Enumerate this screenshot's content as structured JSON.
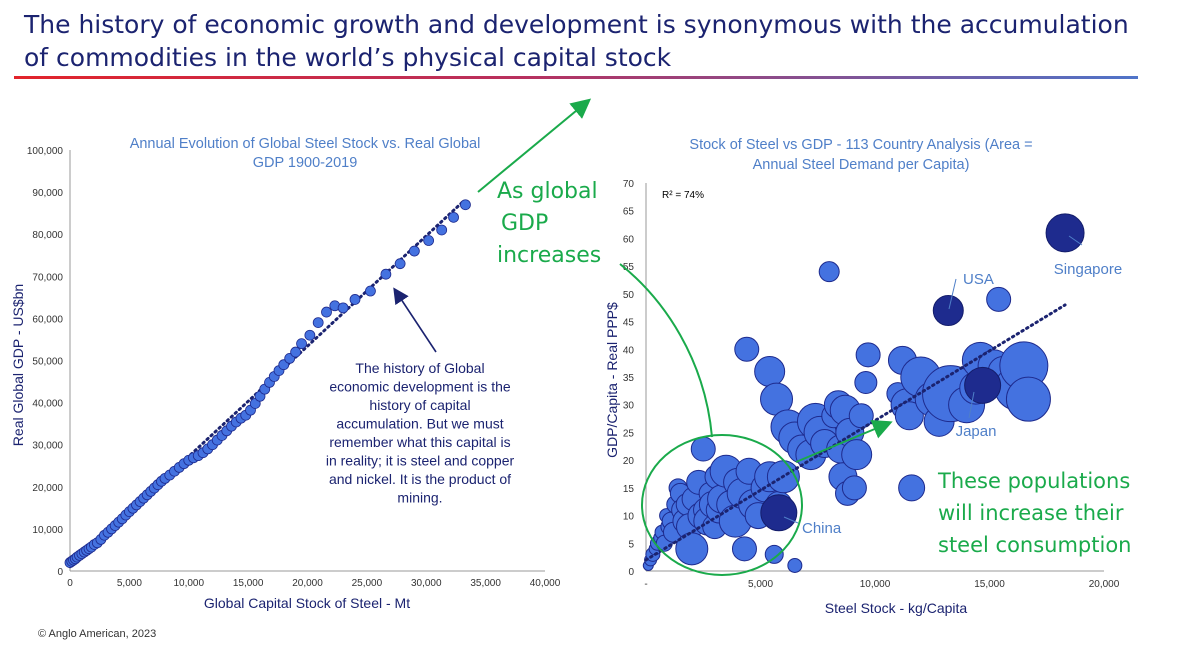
{
  "headline": {
    "line1": "The history of economic growth and development is synonymous with the accumulation",
    "line2": "of commodities in the world’s physical capital stock"
  },
  "footer": "© Anglo American, 2023",
  "colors": {
    "navy": "#1b2370",
    "bubble": "#4472e0",
    "bubble_dark": "#1e2b8e",
    "title_blue": "#4f7fc8",
    "green": "#1aaa4b"
  },
  "chart_data": [
    {
      "type": "scatter",
      "title_lines": [
        "Annual Evolution of Global Steel Stock vs. Real Global",
        "GDP 1900-2019"
      ],
      "xlabel": "Global Capital Stock of Steel - Mt",
      "ylabel": "Real Global GDP - US$bn",
      "xlim": [
        0,
        40000
      ],
      "ylim": [
        0,
        100000
      ],
      "xticks": [
        0,
        5000,
        10000,
        15000,
        20000,
        25000,
        30000,
        35000,
        40000
      ],
      "xtick_labels": [
        "0",
        "5,000",
        "10,000",
        "15,000",
        "20,000",
        "25,000",
        "30,000",
        "35,000",
        "40,000"
      ],
      "yticks": [
        0,
        10000,
        20000,
        30000,
        40000,
        50000,
        60000,
        70000,
        80000,
        90000,
        100000
      ],
      "ytick_labels": [
        "0",
        "10,000",
        "20,000",
        "30,000",
        "40,000",
        "50,000",
        "60,000",
        "70,000",
        "80,000",
        "90,000",
        "100,000"
      ],
      "trendline": {
        "style": "dotted",
        "from": [
          0,
          1000
        ],
        "to": [
          33200,
          88000
        ]
      },
      "points": [
        [
          0,
          2000
        ],
        [
          150,
          2300
        ],
        [
          300,
          2600
        ],
        [
          450,
          2900
        ],
        [
          600,
          3300
        ],
        [
          800,
          3700
        ],
        [
          1000,
          4100
        ],
        [
          1200,
          4500
        ],
        [
          1400,
          4900
        ],
        [
          1600,
          5300
        ],
        [
          1800,
          5700
        ],
        [
          2050,
          6300
        ],
        [
          2300,
          6700
        ],
        [
          2600,
          7500
        ],
        [
          2900,
          8500
        ],
        [
          3200,
          9200
        ],
        [
          3500,
          10000
        ],
        [
          3800,
          10800
        ],
        [
          4100,
          11600
        ],
        [
          4400,
          12400
        ],
        [
          4700,
          13300
        ],
        [
          5000,
          14100
        ],
        [
          5300,
          14900
        ],
        [
          5600,
          15700
        ],
        [
          5900,
          16500
        ],
        [
          6200,
          17300
        ],
        [
          6500,
          18100
        ],
        [
          6800,
          18900
        ],
        [
          7100,
          19700
        ],
        [
          7400,
          20500
        ],
        [
          7700,
          21300
        ],
        [
          8000,
          22000
        ],
        [
          8400,
          22800
        ],
        [
          8800,
          23700
        ],
        [
          9200,
          24600
        ],
        [
          9600,
          25500
        ],
        [
          10000,
          26300
        ],
        [
          10400,
          26900
        ],
        [
          10800,
          27400
        ],
        [
          11200,
          28100
        ],
        [
          11600,
          29000
        ],
        [
          12000,
          30000
        ],
        [
          12400,
          31100
        ],
        [
          12800,
          32200
        ],
        [
          13200,
          33300
        ],
        [
          13600,
          34400
        ],
        [
          14000,
          35400
        ],
        [
          14400,
          36300
        ],
        [
          14800,
          37000
        ],
        [
          15200,
          38200
        ],
        [
          15600,
          39800
        ],
        [
          16000,
          41500
        ],
        [
          16400,
          43200
        ],
        [
          16800,
          44800
        ],
        [
          17200,
          46200
        ],
        [
          17600,
          47600
        ],
        [
          18000,
          49000
        ],
        [
          18500,
          50500
        ],
        [
          19000,
          52000
        ],
        [
          19500,
          54000
        ],
        [
          20200,
          56000
        ],
        [
          20900,
          59000
        ],
        [
          21600,
          61500
        ],
        [
          22300,
          63000
        ],
        [
          23000,
          62500
        ],
        [
          24000,
          64500
        ],
        [
          25300,
          66500
        ],
        [
          26600,
          70500
        ],
        [
          27800,
          73000
        ],
        [
          29000,
          76000
        ],
        [
          30200,
          78500
        ],
        [
          31300,
          81000
        ],
        [
          32300,
          84000
        ],
        [
          33300,
          87000
        ]
      ],
      "annotation_lines": [
        "The history of Global",
        "economic development is the",
        "history of capital",
        "accumulation. But we must",
        "remember what this capital is",
        "in reality; it is steel and copper",
        "and nickel. It is the product of",
        "mining."
      ]
    },
    {
      "type": "scatter",
      "title_lines": [
        "Stock of Steel vs GDP - 113 Country Analysis (Area =",
        "Annual Steel Demand per Capita)"
      ],
      "xlabel": "Steel Stock - kg/Capita",
      "ylabel": "GDP/Capita - Real PPP$",
      "xlim": [
        0,
        20000
      ],
      "ylim": [
        0,
        70
      ],
      "xticks": [
        0,
        5000,
        10000,
        15000,
        20000
      ],
      "xtick_labels": [
        "-",
        "5,000",
        "10,000",
        "15,000",
        "20,000"
      ],
      "yticks": [
        0,
        5,
        10,
        15,
        20,
        25,
        30,
        35,
        40,
        45,
        50,
        55,
        60,
        65,
        70
      ],
      "ytick_labels": [
        "0",
        "5",
        "10",
        "15",
        "20",
        "25",
        "30",
        "35",
        "40",
        "45",
        "50",
        "55",
        "60",
        "65",
        "70"
      ],
      "r2_label": "R² = 74%",
      "trendline": {
        "style": "dotted",
        "from": [
          0,
          2
        ],
        "to": [
          18300,
          48
        ]
      },
      "bubbles": [
        [
          100,
          1,
          5
        ],
        [
          200,
          2,
          6
        ],
        [
          300,
          3,
          7
        ],
        [
          400,
          4,
          6
        ],
        [
          500,
          5,
          7
        ],
        [
          600,
          6,
          6
        ],
        [
          700,
          7,
          7
        ],
        [
          800,
          5,
          8
        ],
        [
          900,
          10,
          7
        ],
        [
          1000,
          8,
          8
        ],
        [
          1100,
          9,
          9
        ],
        [
          1200,
          7,
          10
        ],
        [
          1300,
          12,
          9
        ],
        [
          1400,
          15,
          9
        ],
        [
          1500,
          14,
          10
        ],
        [
          1600,
          11,
          11
        ],
        [
          1700,
          9,
          12
        ],
        [
          1800,
          12,
          11
        ],
        [
          1900,
          8,
          13
        ],
        [
          2000,
          4,
          16
        ],
        [
          2100,
          13,
          12
        ],
        [
          2300,
          16,
          12
        ],
        [
          2400,
          10,
          13
        ],
        [
          2500,
          22,
          12
        ],
        [
          2600,
          11,
          12
        ],
        [
          2700,
          9,
          14
        ],
        [
          2800,
          14,
          11
        ],
        [
          2900,
          12,
          13
        ],
        [
          3000,
          8,
          12
        ],
        [
          3100,
          17,
          12
        ],
        [
          3200,
          11,
          13
        ],
        [
          3300,
          13,
          14
        ],
        [
          3500,
          18,
          16
        ],
        [
          3700,
          12,
          14
        ],
        [
          3900,
          9,
          16
        ],
        [
          4000,
          16,
          14
        ],
        [
          4200,
          14,
          15
        ],
        [
          4300,
          4,
          12
        ],
        [
          4500,
          18,
          13
        ],
        [
          4700,
          12,
          15
        ],
        [
          4900,
          10,
          13
        ],
        [
          5200,
          15,
          14
        ],
        [
          5400,
          17,
          15
        ],
        [
          5600,
          3,
          9
        ],
        [
          5800,
          12,
          13
        ],
        [
          6000,
          17,
          16
        ],
        [
          6500,
          1,
          7
        ],
        [
          4400,
          40,
          12
        ],
        [
          5400,
          36,
          15
        ],
        [
          5700,
          31,
          16
        ],
        [
          6200,
          26,
          17
        ],
        [
          6500,
          24,
          16
        ],
        [
          6800,
          22,
          14
        ],
        [
          7200,
          21,
          15
        ],
        [
          7400,
          27,
          18
        ],
        [
          7600,
          25,
          16
        ],
        [
          7800,
          23,
          14
        ],
        [
          8000,
          54,
          10
        ],
        [
          8200,
          28,
          12
        ],
        [
          8400,
          30,
          14
        ],
        [
          8500,
          22,
          14
        ],
        [
          8600,
          17,
          14
        ],
        [
          8700,
          29,
          15
        ],
        [
          8800,
          14,
          12
        ],
        [
          8900,
          25,
          14
        ],
        [
          9100,
          15,
          12
        ],
        [
          9200,
          21,
          15
        ],
        [
          9400,
          28,
          12
        ],
        [
          9600,
          34,
          11
        ],
        [
          9700,
          39,
          12
        ],
        [
          11000,
          32,
          11
        ],
        [
          11200,
          38,
          14
        ],
        [
          11400,
          30,
          16
        ],
        [
          11500,
          28,
          14
        ],
        [
          11600,
          15,
          13
        ],
        [
          12000,
          35,
          20
        ],
        [
          12500,
          31,
          17
        ],
        [
          12800,
          27,
          15
        ],
        [
          13300,
          32,
          28
        ],
        [
          14000,
          30,
          18
        ],
        [
          14400,
          33,
          16
        ],
        [
          14600,
          38,
          18
        ],
        [
          15200,
          37,
          16
        ],
        [
          15600,
          36,
          15
        ],
        [
          15400,
          49,
          12
        ],
        [
          16200,
          33,
          22
        ],
        [
          16500,
          37,
          24
        ],
        [
          16700,
          31,
          22
        ]
      ],
      "highlights": [
        {
          "label": "China",
          "x": 5800,
          "y": 10.5,
          "r": 18
        },
        {
          "label": "Japan",
          "x": 14700,
          "y": 33.5,
          "r": 18
        },
        {
          "label": "USA",
          "x": 13200,
          "y": 47,
          "r": 15
        },
        {
          "label": "Singapore",
          "x": 18300,
          "y": 61,
          "r": 19
        }
      ]
    }
  ],
  "callouts": {
    "gdp_lines": [
      "As global",
      "GDP",
      "increases"
    ],
    "pop_lines": [
      "These populations",
      "will increase their",
      "steel consumption"
    ]
  }
}
